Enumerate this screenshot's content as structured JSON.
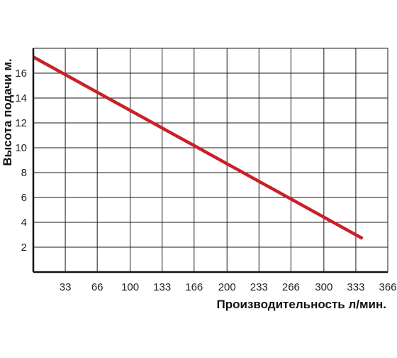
{
  "chart_data": {
    "type": "line",
    "title": "",
    "xlabel": "Производительность л/мин.",
    "ylabel": "Высота подачи м.",
    "x_ticks": [
      "33",
      "66",
      "100",
      "133",
      "166",
      "200",
      "233",
      "266",
      "300",
      "333",
      "366"
    ],
    "y_ticks": [
      "2",
      "4",
      "6",
      "8",
      "10",
      "12",
      "14",
      "16"
    ],
    "xlim": [
      0,
      366
    ],
    "ylim": [
      0,
      18
    ],
    "grid": true,
    "series": [
      {
        "color": "#cc1f26",
        "x": [
          0,
          340
        ],
        "y": [
          17.3,
          2.7
        ]
      }
    ]
  }
}
